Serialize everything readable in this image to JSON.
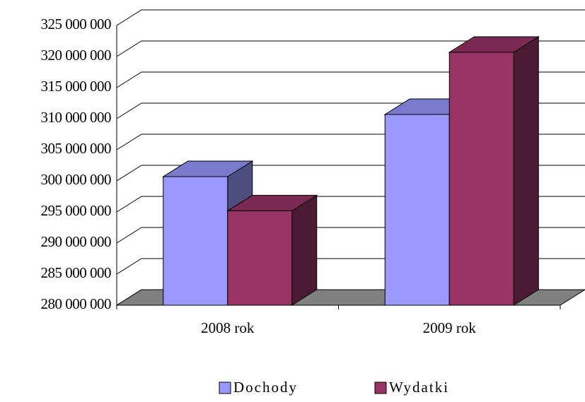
{
  "chart_data": {
    "type": "bar3d",
    "categories": [
      "2008 rok",
      "2009 rok"
    ],
    "series": [
      {
        "name": "Dochody",
        "color": "#9999ff",
        "values": [
          300000000,
          310000000
        ]
      },
      {
        "name": "Wydatki",
        "color": "#993366",
        "values": [
          294500000,
          320000000
        ]
      }
    ],
    "ylim": [
      280000000,
      325000000
    ],
    "yticks": [
      {
        "value": 280000000,
        "label": "280 000 000"
      },
      {
        "value": 285000000,
        "label": "285 000 000"
      },
      {
        "value": 290000000,
        "label": "290 000 000"
      },
      {
        "value": 295000000,
        "label": "295 000 000"
      },
      {
        "value": 300000000,
        "label": "300 000 000"
      },
      {
        "value": 305000000,
        "label": "305 000 000"
      },
      {
        "value": 310000000,
        "label": "310 000 000"
      },
      {
        "value": 315000000,
        "label": "315 000 000"
      },
      {
        "value": 320000000,
        "label": "320 000 000"
      },
      {
        "value": 325000000,
        "label": "325 000 000"
      }
    ],
    "grid": true,
    "legend": "bottom"
  }
}
